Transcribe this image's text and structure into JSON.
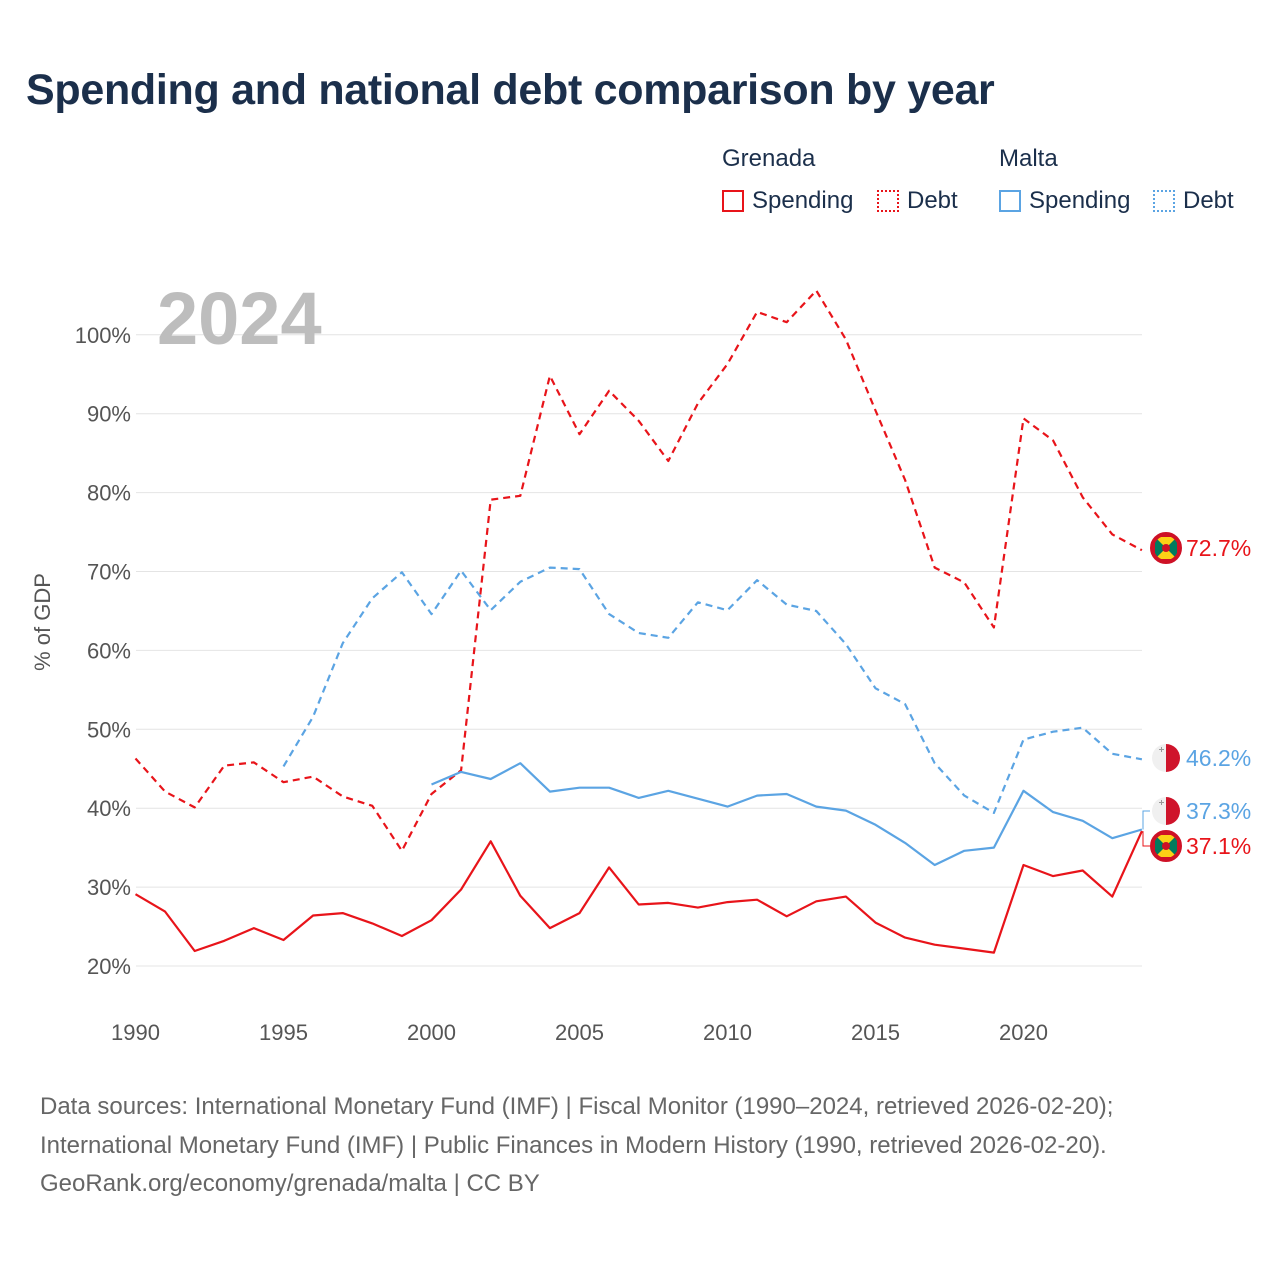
{
  "title": "Spending and national debt comparison by year",
  "legend": {
    "groups": [
      {
        "name": "Grenada",
        "items": [
          {
            "label": "Spending",
            "style": "solid",
            "color": "#e8141a"
          },
          {
            "label": "Debt",
            "style": "dotted",
            "color": "#e8141a"
          }
        ]
      },
      {
        "name": "Malta",
        "items": [
          {
            "label": "Spending",
            "style": "solid",
            "color": "#5ba4e3"
          },
          {
            "label": "Debt",
            "style": "dotted",
            "color": "#5ba4e3"
          }
        ]
      }
    ]
  },
  "chart_data": {
    "type": "line",
    "title": "Spending and national debt comparison by year",
    "year_watermark": "2024",
    "ylabel": "% of GDP",
    "xlabel": "",
    "xlim": [
      1990,
      2024
    ],
    "ylim": [
      15,
      107
    ],
    "x_ticks": [
      "1990",
      "1995",
      "2000",
      "2005",
      "2010",
      "2015",
      "2020"
    ],
    "y_ticks": [
      "20%",
      "30%",
      "40%",
      "50%",
      "60%",
      "70%",
      "80%",
      "90%",
      "100%"
    ],
    "grid": true,
    "series": [
      {
        "name": "Grenada Debt",
        "color": "#e8141a",
        "dash": true,
        "flag": "grenada-flag",
        "end_label": "72.7%",
        "x": [
          1990,
          1991,
          1992,
          1993,
          1994,
          1995,
          1996,
          1997,
          1998,
          1999,
          2000,
          2001,
          2002,
          2003,
          2004,
          2005,
          2006,
          2007,
          2008,
          2009,
          2010,
          2011,
          2012,
          2013,
          2014,
          2015,
          2016,
          2017,
          2018,
          2019,
          2020,
          2021,
          2022,
          2023,
          2024
        ],
        "values": [
          46.3,
          42.1,
          40.1,
          45.4,
          45.8,
          43.3,
          44.0,
          41.5,
          40.3,
          34.6,
          41.8,
          44.8,
          79.1,
          79.6,
          94.8,
          87.4,
          92.9,
          89.1,
          84.0,
          91.3,
          96.3,
          102.9,
          101.6,
          105.6,
          99.4,
          90.4,
          81.6,
          70.5,
          68.6,
          62.9,
          89.4,
          86.6,
          79.4,
          74.7,
          72.7
        ]
      },
      {
        "name": "Malta Debt",
        "color": "#5ba4e3",
        "dash": true,
        "flag": "malta-flag",
        "end_label": "46.2%",
        "x": [
          1995,
          1996,
          1997,
          1998,
          1999,
          2000,
          2001,
          2002,
          2003,
          2004,
          2005,
          2006,
          2007,
          2008,
          2009,
          2010,
          2011,
          2012,
          2013,
          2014,
          2015,
          2016,
          2017,
          2018,
          2019,
          2020,
          2021,
          2022,
          2023,
          2024
        ],
        "values": [
          45.3,
          51.6,
          60.9,
          66.6,
          69.9,
          64.6,
          70.1,
          65.1,
          68.7,
          70.5,
          70.3,
          64.6,
          62.2,
          61.6,
          66.1,
          65.1,
          68.9,
          65.8,
          65.0,
          60.8,
          55.2,
          53.2,
          45.7,
          41.6,
          39.4,
          48.7,
          49.7,
          50.2,
          46.9,
          46.2
        ]
      },
      {
        "name": "Malta Spending",
        "color": "#5ba4e3",
        "dash": false,
        "flag": "malta-flag",
        "end_label": "37.3%",
        "x": [
          2000,
          2001,
          2002,
          2003,
          2004,
          2005,
          2006,
          2007,
          2008,
          2009,
          2010,
          2011,
          2012,
          2013,
          2014,
          2015,
          2016,
          2017,
          2018,
          2019,
          2020,
          2021,
          2022,
          2023,
          2024
        ],
        "values": [
          43.0,
          44.6,
          43.7,
          45.7,
          42.1,
          42.6,
          42.6,
          41.3,
          42.2,
          41.2,
          40.2,
          41.6,
          41.8,
          40.2,
          39.7,
          37.9,
          35.6,
          32.8,
          34.6,
          35.0,
          42.2,
          39.5,
          38.4,
          36.2,
          37.3
        ]
      },
      {
        "name": "Grenada Spending",
        "color": "#e8141a",
        "dash": false,
        "flag": "grenada-flag",
        "end_label": "37.1%",
        "x": [
          1990,
          1991,
          1992,
          1993,
          1994,
          1995,
          1996,
          1997,
          1998,
          1999,
          2000,
          2001,
          2002,
          2003,
          2004,
          2005,
          2006,
          2007,
          2008,
          2009,
          2010,
          2011,
          2012,
          2013,
          2014,
          2015,
          2016,
          2017,
          2018,
          2019,
          2020,
          2021,
          2022,
          2023,
          2024
        ],
        "values": [
          29.1,
          26.9,
          21.9,
          23.2,
          24.8,
          23.3,
          26.4,
          26.7,
          25.4,
          23.8,
          25.8,
          29.7,
          35.8,
          28.9,
          24.8,
          26.7,
          32.5,
          27.8,
          28.0,
          27.4,
          28.1,
          28.4,
          26.3,
          28.2,
          28.8,
          25.5,
          23.6,
          22.7,
          22.2,
          21.7,
          32.8,
          31.4,
          32.1,
          28.8,
          37.1
        ]
      }
    ]
  },
  "source": {
    "lines": [
      "Data sources: International Monetary Fund (IMF) | Fiscal Monitor (1990–2024, retrieved 2026-02-20);",
      "International Monetary Fund (IMF) | Public Finances in Modern History (1990, retrieved 2026-02-20).",
      "GeoRank.org/economy/grenada/malta | CC BY"
    ]
  }
}
